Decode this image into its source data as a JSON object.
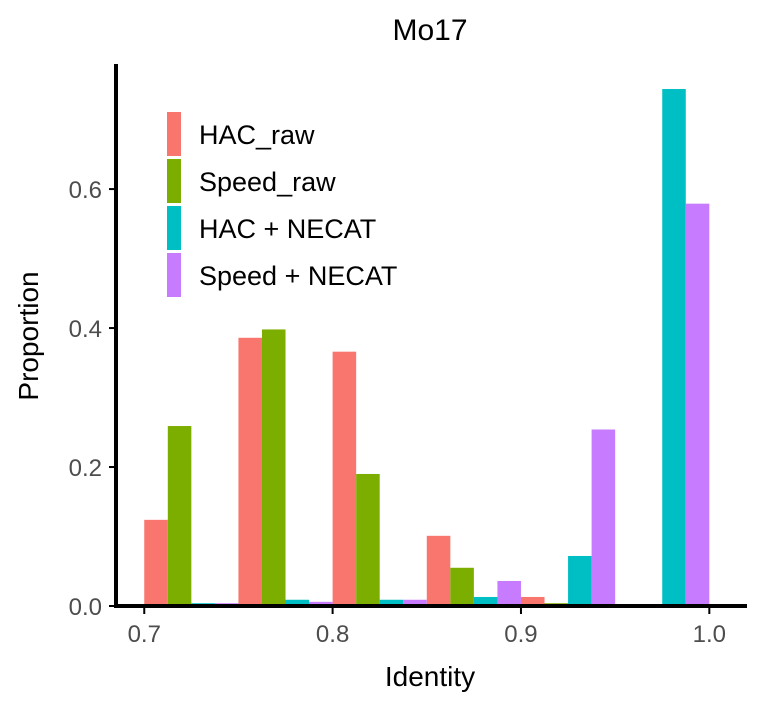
{
  "chart_data": {
    "type": "bar",
    "title": "Mo17",
    "xlabel": "Identity",
    "ylabel": "Proportion",
    "xlim": [
      0.685,
      1.02
    ],
    "ylim": [
      0,
      0.78
    ],
    "xticks": [
      0.7,
      0.8,
      0.9,
      1.0
    ],
    "xtick_labels": [
      "0.7",
      "0.8",
      "0.9",
      "1.0"
    ],
    "yticks": [
      0.0,
      0.2,
      0.4,
      0.6
    ],
    "ytick_labels": [
      "0.0",
      "0.2",
      "0.4",
      "0.6"
    ],
    "bin_width": 0.05,
    "bin_centers": [
      0.725,
      0.775,
      0.825,
      0.875,
      0.925,
      0.975
    ],
    "legend_position": "top-left",
    "grid": false,
    "series": [
      {
        "name": "HAC_raw",
        "color": "#F8766D",
        "values": [
          0.124,
          0.386,
          0.366,
          0.101,
          0.013,
          0.001
        ]
      },
      {
        "name": "Speed_raw",
        "color": "#7CAE00",
        "values": [
          0.259,
          0.398,
          0.19,
          0.055,
          0.004,
          0.001
        ]
      },
      {
        "name": "HAC + NECAT",
        "color": "#00BFC4",
        "values": [
          0.004,
          0.009,
          0.009,
          0.013,
          0.072,
          0.744
        ]
      },
      {
        "name": "Speed + NECAT",
        "color": "#C77CFF",
        "values": [
          0.004,
          0.006,
          0.009,
          0.036,
          0.254,
          0.579
        ]
      }
    ]
  }
}
